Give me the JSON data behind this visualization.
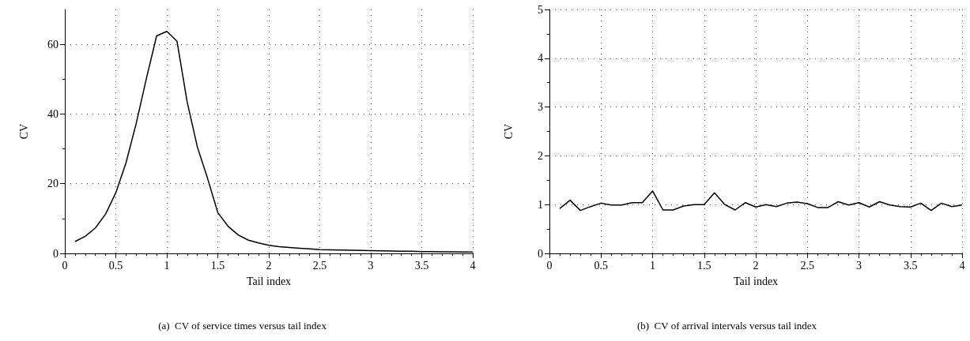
{
  "chart_data": [
    {
      "type": "line",
      "title": "(a)  CV of service times versus tail index",
      "xlabel": "Tail index",
      "ylabel": "CV",
      "xlim": [
        0,
        4
      ],
      "xticks": [
        0,
        0.5,
        1,
        1.5,
        2,
        2.5,
        3,
        3.5,
        4
      ],
      "ylim": [
        0,
        70
      ],
      "yticks": [
        0,
        20,
        40,
        60
      ],
      "grid": true,
      "marker": "none",
      "line_style": "solid",
      "x": [
        0.1,
        0.2,
        0.3,
        0.4,
        0.5,
        0.6,
        0.7,
        0.8,
        0.9,
        1.0,
        1.1,
        1.2,
        1.3,
        1.4,
        1.5,
        1.6,
        1.7,
        1.8,
        1.9,
        2.0,
        2.1,
        2.2,
        2.3,
        2.4,
        2.5,
        2.6,
        2.7,
        2.8,
        2.9,
        3.0,
        3.1,
        3.2,
        3.3,
        3.4,
        3.5,
        3.6,
        3.7,
        3.8,
        3.9,
        4.0
      ],
      "series": [
        {
          "color": "#000000",
          "values": [
            3.4,
            4.9,
            7.3,
            11.3,
            17.4,
            26,
            37.3,
            50.2,
            62.4,
            63.7,
            60.9,
            43.4,
            30.5,
            21.5,
            11.7,
            7.8,
            5.3,
            3.8,
            3.0,
            2.3,
            1.9,
            1.7,
            1.5,
            1.3,
            1.1,
            1.0,
            0.95,
            0.9,
            0.85,
            0.8,
            0.75,
            0.7,
            0.65,
            0.6,
            0.5,
            0.5,
            0.45,
            0.45,
            0.4,
            0.4
          ]
        }
      ]
    },
    {
      "type": "line",
      "title": "(b)  CV of arrival intervals versus tail index",
      "xlabel": "Tail index",
      "ylabel": "CV",
      "xlim": [
        0,
        4
      ],
      "xticks": [
        0,
        0.5,
        1,
        1.5,
        2,
        2.5,
        3,
        3.5,
        4
      ],
      "ylim": [
        0,
        5
      ],
      "yticks": [
        0,
        1,
        2,
        3,
        4,
        5
      ],
      "grid": true,
      "marker": "none",
      "line_style": "solid",
      "x": [
        0.1,
        0.2,
        0.3,
        0.4,
        0.5,
        0.6,
        0.7,
        0.8,
        0.9,
        1.0,
        1.1,
        1.2,
        1.3,
        1.4,
        1.5,
        1.6,
        1.7,
        1.8,
        1.9,
        2.0,
        2.1,
        2.2,
        2.3,
        2.4,
        2.5,
        2.6,
        2.7,
        2.8,
        2.9,
        3.0,
        3.1,
        3.2,
        3.3,
        3.4,
        3.5,
        3.6,
        3.7,
        3.8,
        3.9,
        4.0
      ],
      "series": [
        {
          "color": "#000000",
          "values": [
            0.92,
            1.09,
            0.88,
            0.96,
            1.03,
            0.99,
            0.99,
            1.04,
            1.04,
            1.28,
            0.89,
            0.89,
            0.97,
            1.0,
            1.0,
            1.24,
            1.0,
            0.89,
            1.04,
            0.95,
            1.0,
            0.96,
            1.03,
            1.05,
            1.02,
            0.94,
            0.94,
            1.06,
            0.99,
            1.04,
            0.95,
            1.06,
            0.99,
            0.96,
            0.95,
            1.03,
            0.88,
            1.03,
            0.96,
            0.99
          ]
        }
      ]
    }
  ]
}
